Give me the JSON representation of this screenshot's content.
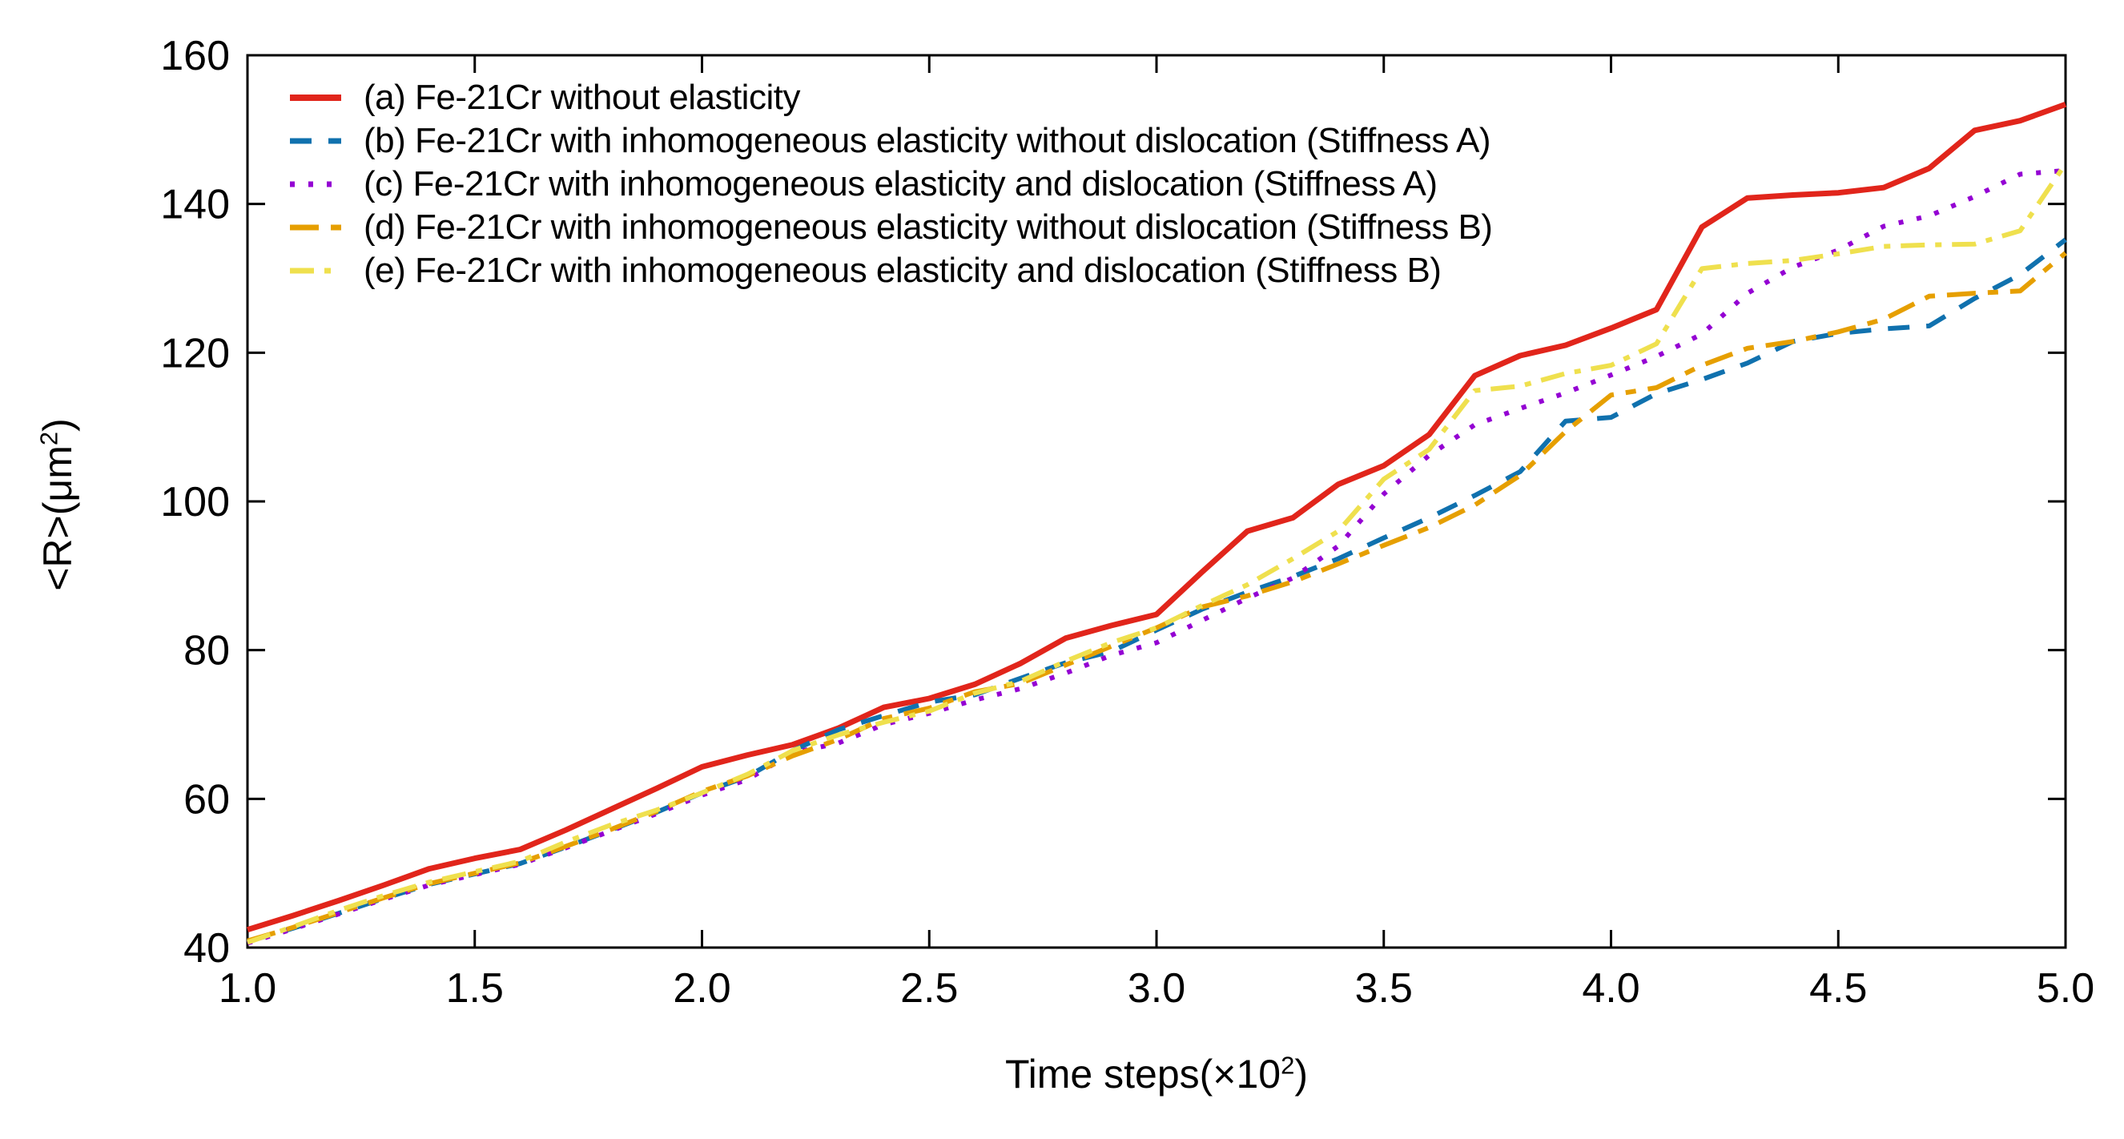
{
  "chart_data": {
    "type": "line",
    "title": "",
    "xlabel_parts": {
      "main": "Time steps(×10",
      "sup": "2",
      "close": ")"
    },
    "ylabel_parts": {
      "main": "<R>(μm",
      "sup": "2",
      "close": ")"
    },
    "xlim": [
      1.0,
      5.0
    ],
    "ylim": [
      40,
      160
    ],
    "x_ticks": [
      "1.0",
      "1.5",
      "2.0",
      "2.5",
      "3.0",
      "3.5",
      "4.0",
      "4.5",
      "5.0"
    ],
    "y_ticks": [
      "40",
      "60",
      "80",
      "100",
      "120",
      "140",
      "160"
    ],
    "grid": false,
    "legend_position": "top-left",
    "x_start": 1.0,
    "x_step": 0.1,
    "series": [
      {
        "name": "a",
        "label": "(a) Fe-21Cr without elasticity",
        "color": "#e1251b",
        "dash_style": "solid",
        "values": [
          42.4,
          44.3,
          46.3,
          48.4,
          50.6,
          52.0,
          53.2,
          55.8,
          58.6,
          61.4,
          64.3,
          65.9,
          67.3,
          69.5,
          72.3,
          73.5,
          75.4,
          78.2,
          81.6,
          83.3,
          84.8,
          90.5,
          96.0,
          97.8,
          102.3,
          104.8,
          109.0,
          116.9,
          119.6,
          121.0,
          123.3,
          125.8,
          136.9,
          140.8,
          141.2,
          141.5,
          142.2,
          144.8,
          149.9,
          151.2,
          153.4
        ]
      },
      {
        "name": "b",
        "label": "(b) Fe-21Cr with inhomogeneous elasticity without dislocation (Stiffness A)",
        "color": "#1071ae",
        "dash_style": "dashed",
        "values": [
          40.8,
          42.6,
          44.6,
          46.6,
          48.5,
          49.9,
          51.3,
          53.5,
          55.8,
          58.2,
          60.8,
          63.0,
          66.5,
          69.3,
          71.2,
          73.0,
          74.0,
          76.2,
          78.3,
          79.8,
          82.7,
          85.5,
          87.8,
          89.9,
          92.3,
          95.1,
          97.8,
          100.8,
          104.0,
          110.8,
          111.3,
          114.5,
          116.4,
          118.6,
          121.5,
          122.6,
          123.2,
          123.6,
          127.3,
          130.5,
          135.2
        ]
      },
      {
        "name": "c",
        "label": "(c) Fe-21Cr with inhomogeneous elasticity and dislocation (Stiffness A)",
        "color": "#9400d3",
        "dash_style": "dotted",
        "values": [
          40.6,
          42.5,
          44.5,
          46.5,
          48.4,
          49.8,
          51.2,
          53.4,
          55.7,
          58.0,
          60.5,
          62.6,
          66.2,
          67.5,
          70.0,
          71.5,
          73.3,
          74.8,
          76.9,
          79.3,
          81.0,
          84.0,
          87.0,
          89.7,
          94.0,
          101.0,
          106.2,
          110.3,
          112.5,
          114.6,
          117.0,
          119.5,
          122.5,
          128.0,
          131.5,
          133.8,
          137.0,
          138.4,
          141.0,
          144.0,
          144.5
        ]
      },
      {
        "name": "d",
        "label": "(d) Fe-21Cr with inhomogeneous elasticity without dislocation (Stiffness B)",
        "color": "#e69f00",
        "dash_style": "dash-dot",
        "values": [
          40.9,
          42.7,
          44.7,
          46.7,
          48.6,
          50.0,
          51.4,
          53.6,
          55.9,
          58.3,
          61.0,
          63.1,
          65.8,
          68.0,
          70.8,
          72.2,
          74.4,
          75.5,
          78.0,
          80.5,
          83.0,
          85.8,
          87.3,
          89.2,
          91.6,
          94.1,
          96.5,
          99.5,
          103.5,
          109.4,
          114.3,
          115.3,
          118.3,
          120.6,
          121.5,
          122.8,
          124.5,
          127.6,
          128.0,
          128.3,
          133.4
        ]
      },
      {
        "name": "e",
        "label": "(e) Fe-21Cr with inhomogeneous elasticity and dislocation (Stiffness B)",
        "color": "#efe04e",
        "dash_style": "dash-dot-dot",
        "values": [
          40.7,
          42.8,
          45.0,
          47.0,
          48.8,
          50.2,
          51.6,
          54.2,
          56.5,
          58.5,
          60.8,
          63.3,
          66.5,
          68.6,
          70.3,
          71.8,
          74.2,
          75.8,
          78.5,
          81.0,
          83.0,
          86.0,
          88.8,
          92.3,
          96.0,
          103.0,
          107.0,
          114.9,
          115.5,
          117.2,
          118.3,
          121.2,
          131.3,
          132.0,
          132.4,
          133.3,
          134.3,
          134.5,
          134.6,
          136.4,
          145.4
        ]
      }
    ],
    "axis_color": "#000000",
    "background_color": "#ffffff"
  }
}
